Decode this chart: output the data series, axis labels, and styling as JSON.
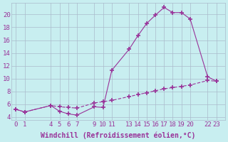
{
  "xlabel": "Windchill (Refroidissement éolien,°C)",
  "hours": [
    0,
    1,
    4,
    5,
    6,
    7,
    9,
    10,
    11,
    13,
    14,
    15,
    16,
    17,
    18,
    19,
    20,
    22,
    23
  ],
  "main_line": [
    5.2,
    4.8,
    5.8,
    4.9,
    4.5,
    4.3,
    5.6,
    5.5,
    11.3,
    14.6,
    16.7,
    18.6,
    19.9,
    21.1,
    20.3,
    20.3,
    19.3,
    10.3,
    9.6
  ],
  "flat_line": [
    5.2,
    4.8,
    5.8,
    5.6,
    5.5,
    5.4,
    6.2,
    6.4,
    6.6,
    7.2,
    7.5,
    7.8,
    8.1,
    8.4,
    8.6,
    8.8,
    9.0,
    9.7,
    9.6
  ],
  "xticks": [
    0,
    1,
    4,
    5,
    6,
    7,
    9,
    10,
    11,
    13,
    14,
    15,
    16,
    17,
    18,
    19,
    20,
    22,
    23
  ],
  "yticks": [
    4,
    6,
    8,
    10,
    12,
    14,
    16,
    18,
    20
  ],
  "ylim": [
    3.5,
    21.8
  ],
  "xlim": [
    -0.5,
    24.0
  ],
  "line_color": "#993399",
  "marker": "+",
  "markersize": 4,
  "markeredgewidth": 1.2,
  "linewidth": 0.8,
  "bg_color": "#C8EEF0",
  "grid_color": "#AABBCC",
  "tick_label_color": "#993399",
  "xlabel_color": "#993399",
  "xlabel_fontsize": 7,
  "tick_fontsize": 6.5
}
